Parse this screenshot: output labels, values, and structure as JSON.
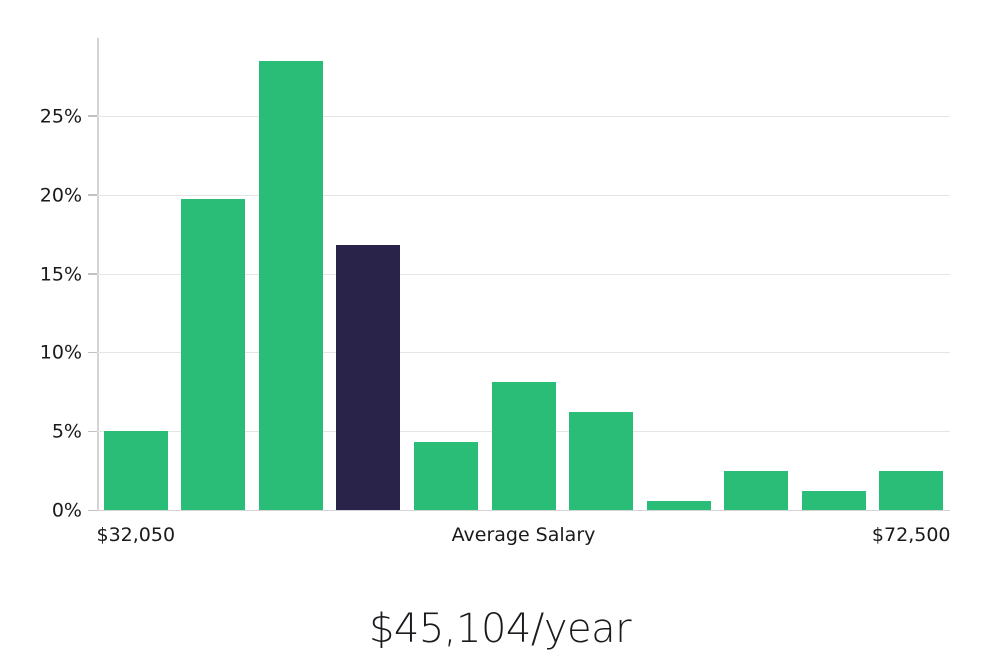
{
  "chart_data": {
    "type": "bar",
    "title": "$45,104/year",
    "values": [
      5.0,
      19.7,
      28.5,
      16.8,
      4.3,
      8.1,
      6.2,
      0.6,
      2.5,
      1.2,
      2.5
    ],
    "unit": "%",
    "highlight_index": 3,
    "ylim": [
      0,
      30
    ],
    "yticks": [
      0,
      5,
      10,
      15,
      20,
      25
    ],
    "ytick_suffix": "%",
    "grid": "horizontal",
    "x_axis_labels": [
      {
        "text": "$32,050",
        "anchor": "first-bar"
      },
      {
        "text": "Average Salary",
        "anchor": "center"
      },
      {
        "text": "$72,500",
        "anchor": "last-bar"
      }
    ],
    "colors": {
      "bar": "#2abd78",
      "highlight_bar": "#2a2349",
      "gridline": "#e5e5e5",
      "axis_line": "#d4d4d4",
      "tick_mark": "#c2c2c2",
      "tick_label": "#1a1a1a",
      "title": "#1b1b1f"
    }
  }
}
